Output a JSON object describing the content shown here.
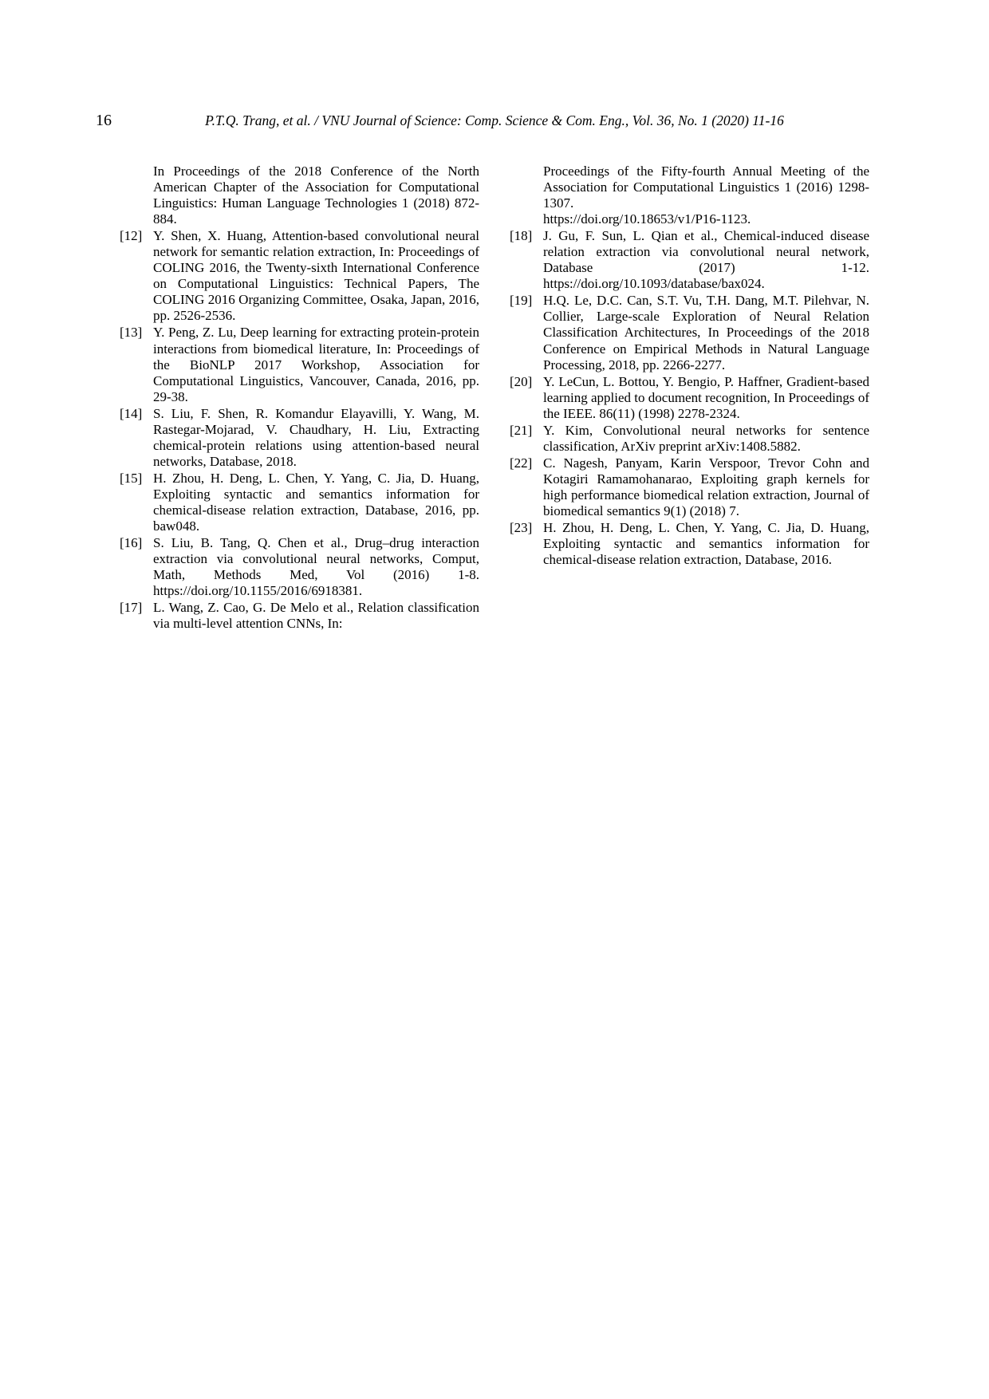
{
  "page_number": "16",
  "running_header": "P.T.Q. Trang, et al. / VNU Journal of Science: Comp. Science & Com. Eng., Vol. 36, No. 1 (2020) 11-16",
  "left_column": {
    "continuation": "In Proceedings of the 2018 Conference of the North American Chapter of the Association for Computational Linguistics: Human Language Technologies 1 (2018) 872-884.",
    "refs": [
      {
        "num": "[12]",
        "text": "Y. Shen, X. Huang, Attention-based convolutional neural network for semantic relation extraction, In: Proceedings of COLING 2016, the Twenty-sixth International Conference on Computational Linguistics: Technical Papers, The COLING 2016 Organizing Committee, Osaka, Japan, 2016, pp. 2526-2536."
      },
      {
        "num": "[13]",
        "text": "Y. Peng, Z. Lu, Deep learning for extracting protein-protein interactions from biomedical literature, In: Proceedings of the BioNLP 2017 Workshop, Association for Computational Linguistics, Vancouver, Canada, 2016, pp. 29-38."
      },
      {
        "num": "[14]",
        "text": "S. Liu, F. Shen, R. Komandur Elayavilli, Y. Wang, M. Rastegar-Mojarad, V. Chaudhary, H. Liu, Extracting chemical-protein relations using attention-based neural networks, Database, 2018."
      },
      {
        "num": "[15]",
        "text": "H. Zhou, H. Deng, L. Chen, Y. Yang, C. Jia, D. Huang, Exploiting syntactic and semantics information for chemical-disease relation extraction,  Database, 2016, pp. baw048."
      },
      {
        "num": "[16]",
        "text": "S. Liu, B. Tang, Q. Chen et al., Drug–drug interaction extraction via convolutional neural networks, Comput, Math, Methods Med, Vol (2016) 1-8. https://doi.org/10.1155/2016/6918381."
      },
      {
        "num": "[17]",
        "text": "L. Wang, Z. Cao, G. De Melo et al., Relation classification via multi-level attention CNNs, In:"
      }
    ]
  },
  "right_column": {
    "continuation": "Proceedings of the Fifty-fourth Annual Meeting of the Association for Computational Linguistics 1 (2016) 1298-1307.",
    "continuation_url": " https://doi.org/10.18653/v1/P16-1123.",
    "refs": [
      {
        "num": "[18]",
        "text": "J. Gu, F. Sun, L. Qian et al., Chemical-induced disease relation extraction via convolutional neural network, Database (2017) 1-12. https://doi.org/10.1093/database/bax024."
      },
      {
        "num": "[19]",
        "text": "H.Q. Le, D.C. Can, S.T. Vu, T.H. Dang, M.T. Pilehvar, N. Collier, Large-scale Exploration of Neural Relation Classification Architectures, In Proceedings of the 2018 Conference on Empirical Methods in Natural Language Processing, 2018, pp. 2266-2277."
      },
      {
        "num": "[20]",
        "text": "Y. LeCun, L. Bottou, Y. Bengio, P. Haffner, Gradient-based learning applied to document recognition, In Proceedings of the IEEE. 86(11) (1998) 2278-2324."
      },
      {
        "num": "[21]",
        "text": "Y. Kim, Convolutional neural networks for sentence classification, ArXiv preprint arXiv:1408.5882."
      },
      {
        "num": "[22]",
        "text": "C. Nagesh, Panyam, Karin Verspoor, Trevor Cohn and Kotagiri Ramamohanarao, Exploiting graph kernels for high performance biomedical relation extraction, Journal of biomedical semantics 9(1) (2018) 7."
      },
      {
        "num": "[23]",
        "text": "H. Zhou, H. Deng, L. Chen, Y. Yang, C. Jia, D. Huang, Exploiting syntactic and semantics information for chemical-disease relation extraction, Database, 2016."
      }
    ]
  }
}
